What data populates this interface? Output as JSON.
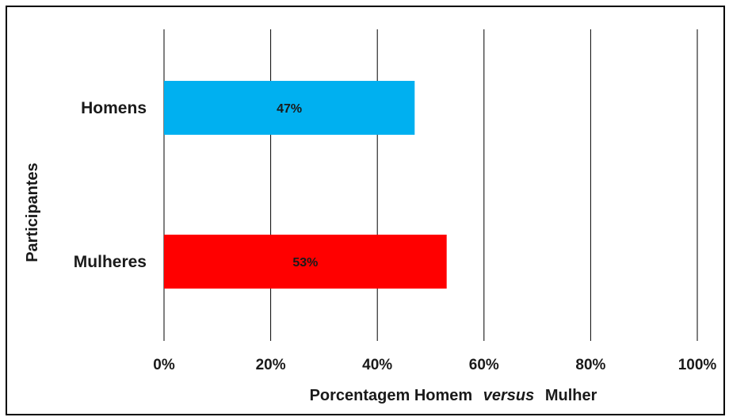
{
  "chart_data": {
    "type": "bar",
    "orientation": "horizontal",
    "categories": [
      "Homens",
      "Mulheres"
    ],
    "values": [
      47,
      53
    ],
    "data_labels": [
      "47%",
      "53%"
    ],
    "colors": [
      "#00b0f0",
      "#ff0000"
    ],
    "xlim": [
      0,
      100
    ],
    "xticks": [
      "0%",
      "20%",
      "40%",
      "60%",
      "80%",
      "100%"
    ],
    "xlabel": {
      "part1": "Porcentagem Homem",
      "italic": "versus",
      "part2": "Mulher"
    },
    "ylabel": "Participantes",
    "grid": "vertical"
  }
}
